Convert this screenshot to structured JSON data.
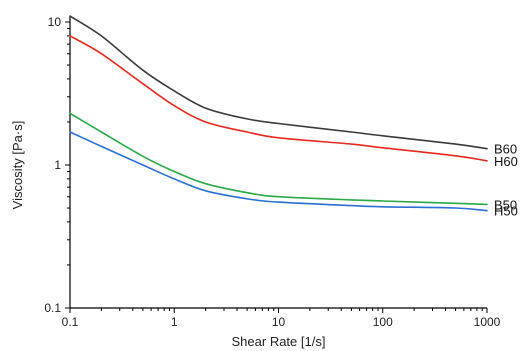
{
  "chart_data": {
    "type": "line",
    "xlabel": "Shear Rate [1/s]",
    "ylabel": "Viscosity [Pa·s]",
    "xscale": "log",
    "yscale": "log",
    "xlim": [
      0.1,
      1000
    ],
    "ylim": [
      0.1,
      10
    ],
    "xticks": [
      {
        "value": 0.1,
        "label": "0.1"
      },
      {
        "value": 1,
        "label": "1"
      },
      {
        "value": 10,
        "label": "10"
      },
      {
        "value": 100,
        "label": "100"
      },
      {
        "value": 1000,
        "label": "1000"
      }
    ],
    "yticks": [
      {
        "value": 0.1,
        "label": "0.1"
      },
      {
        "value": 1,
        "label": "1"
      },
      {
        "value": 10,
        "label": "10"
      }
    ],
    "grid": false,
    "legend": "inline labels at right end of each curve",
    "series": [
      {
        "name": "B60",
        "color": "#3a3a3a",
        "x": [
          0.1,
          0.2,
          0.5,
          1,
          2,
          5,
          10,
          50,
          100,
          500,
          1000
        ],
        "y": [
          11.0,
          8.0,
          4.6,
          3.3,
          2.5,
          2.1,
          1.95,
          1.7,
          1.6,
          1.4,
          1.3
        ]
      },
      {
        "name": "H60",
        "color": "#e8281e",
        "x": [
          0.1,
          0.2,
          0.5,
          1,
          2,
          5,
          10,
          50,
          100,
          500,
          1000
        ],
        "y": [
          8.0,
          6.0,
          3.7,
          2.6,
          2.0,
          1.7,
          1.55,
          1.4,
          1.32,
          1.16,
          1.07
        ]
      },
      {
        "name": "B50",
        "color": "#2aa84a",
        "x": [
          0.1,
          0.2,
          0.5,
          1,
          2,
          5,
          10,
          50,
          100,
          500,
          1000
        ],
        "y": [
          2.3,
          1.7,
          1.15,
          0.9,
          0.74,
          0.64,
          0.6,
          0.57,
          0.56,
          0.54,
          0.53
        ]
      },
      {
        "name": "H50",
        "color": "#2a6fd6",
        "x": [
          0.1,
          0.2,
          0.5,
          1,
          2,
          5,
          10,
          50,
          100,
          500,
          1000
        ],
        "y": [
          1.7,
          1.35,
          1.0,
          0.8,
          0.66,
          0.58,
          0.55,
          0.52,
          0.51,
          0.5,
          0.48
        ]
      }
    ]
  }
}
